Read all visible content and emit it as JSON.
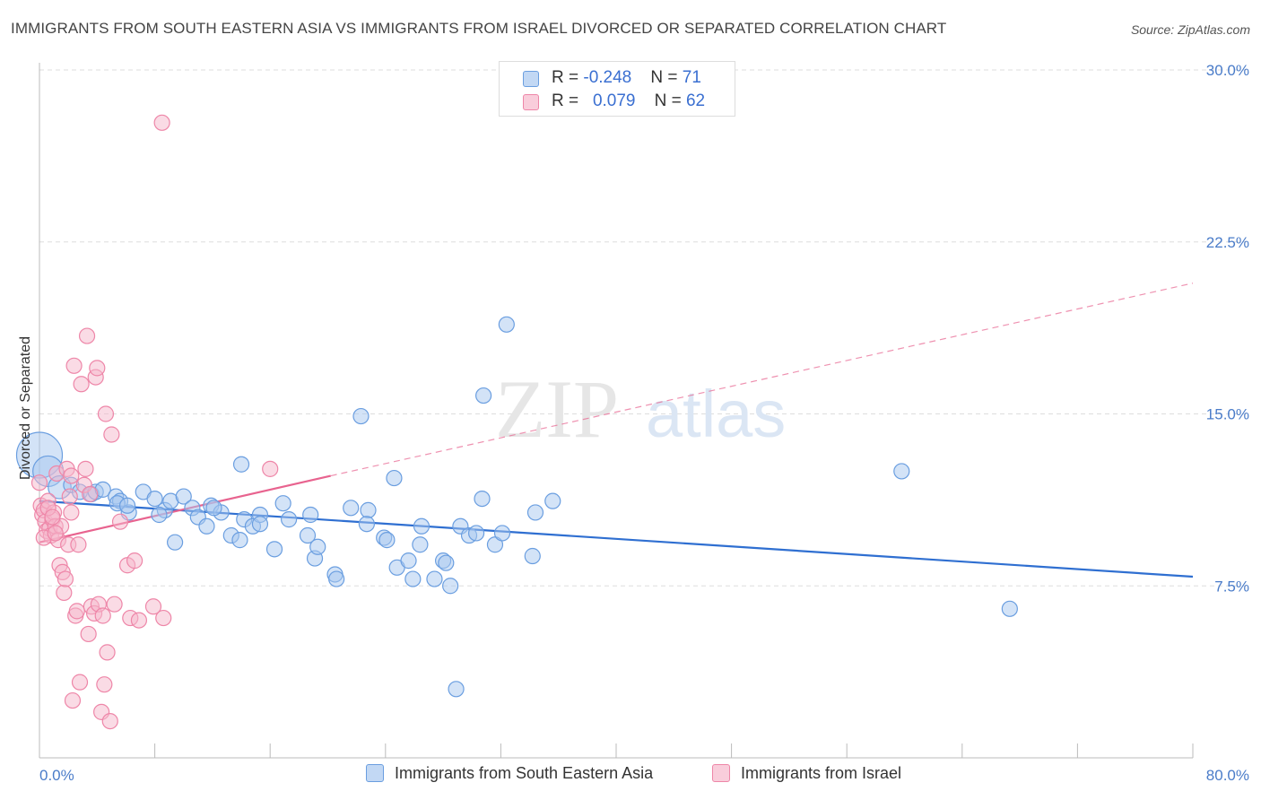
{
  "title": "IMMIGRANTS FROM SOUTH EASTERN ASIA VS IMMIGRANTS FROM ISRAEL DIVORCED OR SEPARATED CORRELATION CHART",
  "source": "Source: ZipAtlas.com",
  "watermark": {
    "zip": "ZIP",
    "atlas": "atlas"
  },
  "legend": {
    "row1": {
      "r_label": "R = ",
      "r_value": "-0.248",
      "n_label": "N = ",
      "n_value": "71"
    },
    "row2": {
      "r_label": "R = ",
      "r_value": "0.079",
      "n_label": "N = ",
      "n_value": "62"
    }
  },
  "colors": {
    "blue_fill": "#a8c8f0",
    "blue_stroke": "#6a9ee0",
    "blue_line": "#2f6fd1",
    "pink_fill": "#f6b8cc",
    "pink_stroke": "#ee86a8",
    "pink_line": "#e8638f",
    "grid": "#dddddd",
    "axis_text": "#4a7cc9"
  },
  "chart_data": {
    "type": "scatter",
    "title": "IMMIGRANTS FROM SOUTH EASTERN ASIA VS IMMIGRANTS FROM ISRAEL DIVORCED OR SEPARATED CORRELATION CHART",
    "xlabel": "",
    "ylabel": "Divorced or Separated",
    "xlim": [
      0,
      80
    ],
    "ylim": [
      0,
      31
    ],
    "x_tick_labels": [
      "0.0%",
      "80.0%"
    ],
    "y_ticks": [
      7.5,
      15.0,
      22.5,
      30.0
    ],
    "y_tick_labels": [
      "7.5%",
      "15.0%",
      "22.5%",
      "30.0%"
    ],
    "grid": true,
    "legend_position": "top-center",
    "series": [
      {
        "name": "Immigrants from South Eastern Asia",
        "color": "blue",
        "points": [
          [
            0.0,
            13.2,
            3
          ],
          [
            0.6,
            12.5,
            2
          ],
          [
            1.4,
            11.8,
            1.5
          ],
          [
            2.2,
            11.9,
            1
          ],
          [
            2.8,
            11.6,
            1
          ],
          [
            3.6,
            11.5,
            1
          ],
          [
            3.9,
            11.6,
            1
          ],
          [
            4.4,
            11.7,
            1
          ],
          [
            5.3,
            11.4,
            1
          ],
          [
            5.6,
            11.2,
            1
          ],
          [
            5.4,
            11.1,
            1
          ],
          [
            6.2,
            10.7,
            1
          ],
          [
            7.2,
            11.6,
            1
          ],
          [
            6.1,
            11.0,
            1
          ],
          [
            8.0,
            11.3,
            1
          ],
          [
            8.7,
            10.8,
            1
          ],
          [
            8.3,
            10.6,
            1
          ],
          [
            9.1,
            11.2,
            1
          ],
          [
            10.0,
            11.4,
            1
          ],
          [
            10.6,
            10.9,
            1
          ],
          [
            9.4,
            9.4,
            1
          ],
          [
            11.0,
            10.5,
            1
          ],
          [
            11.6,
            10.1,
            1
          ],
          [
            11.9,
            11.0,
            1
          ],
          [
            12.6,
            10.7,
            1
          ],
          [
            12.1,
            10.9,
            1
          ],
          [
            13.3,
            9.7,
            1
          ],
          [
            13.9,
            9.5,
            1
          ],
          [
            14.2,
            10.4,
            1
          ],
          [
            14.8,
            10.1,
            1
          ],
          [
            15.3,
            10.6,
            1
          ],
          [
            14.0,
            12.8,
            1
          ],
          [
            15.3,
            10.2,
            1
          ],
          [
            16.3,
            9.1,
            1
          ],
          [
            16.9,
            11.1,
            1
          ],
          [
            17.3,
            10.4,
            1
          ],
          [
            18.8,
            10.6,
            1
          ],
          [
            18.6,
            9.7,
            1
          ],
          [
            19.1,
            8.7,
            1
          ],
          [
            19.3,
            9.2,
            1
          ],
          [
            20.5,
            8.0,
            1
          ],
          [
            20.6,
            7.8,
            1
          ],
          [
            21.6,
            10.9,
            1
          ],
          [
            22.3,
            14.9,
            1
          ],
          [
            22.8,
            10.8,
            1
          ],
          [
            22.7,
            10.2,
            1
          ],
          [
            23.9,
            9.6,
            1
          ],
          [
            24.1,
            9.5,
            1
          ],
          [
            24.6,
            12.2,
            1
          ],
          [
            24.8,
            8.3,
            1
          ],
          [
            25.6,
            8.6,
            1
          ],
          [
            25.9,
            7.8,
            1
          ],
          [
            26.4,
            9.3,
            1
          ],
          [
            26.5,
            10.1,
            1
          ],
          [
            27.4,
            7.8,
            1
          ],
          [
            28.0,
            8.6,
            1
          ],
          [
            28.2,
            8.5,
            1
          ],
          [
            28.5,
            7.5,
            1
          ],
          [
            28.9,
            3.0,
            1
          ],
          [
            29.2,
            10.1,
            1
          ],
          [
            29.8,
            9.7,
            1
          ],
          [
            30.3,
            9.8,
            1
          ],
          [
            30.7,
            11.3,
            1
          ],
          [
            30.8,
            15.8,
            1
          ],
          [
            31.6,
            9.3,
            1
          ],
          [
            32.1,
            9.8,
            1
          ],
          [
            32.4,
            18.9,
            1
          ],
          [
            34.2,
            8.8,
            1
          ],
          [
            34.4,
            10.7,
            1
          ],
          [
            35.6,
            11.2,
            1
          ],
          [
            59.8,
            12.5,
            1
          ],
          [
            67.3,
            6.5,
            1
          ]
        ],
        "trend": {
          "x": [
            0,
            80
          ],
          "y": [
            11.2,
            7.9
          ],
          "style": "solid"
        }
      },
      {
        "name": "Immigrants from Israel",
        "color": "pink",
        "points": [
          [
            0.1,
            11.0,
            1
          ],
          [
            0.2,
            10.6,
            1
          ],
          [
            0.3,
            10.8,
            1
          ],
          [
            0.4,
            10.3,
            1
          ],
          [
            0.5,
            9.9,
            1
          ],
          [
            0.6,
            11.2,
            1
          ],
          [
            0.7,
            10.0,
            1
          ],
          [
            0.8,
            9.7,
            1
          ],
          [
            0.9,
            10.4,
            1
          ],
          [
            1.0,
            10.7,
            1
          ],
          [
            1.1,
            10.1,
            1
          ],
          [
            1.2,
            12.4,
            1
          ],
          [
            1.3,
            9.5,
            1
          ],
          [
            1.4,
            8.4,
            1
          ],
          [
            1.5,
            10.1,
            1
          ],
          [
            1.6,
            8.1,
            1
          ],
          [
            1.7,
            7.2,
            1
          ],
          [
            1.8,
            7.8,
            1
          ],
          [
            1.9,
            12.6,
            1
          ],
          [
            2.0,
            9.3,
            1
          ],
          [
            2.1,
            11.4,
            1
          ],
          [
            2.2,
            10.7,
            1
          ],
          [
            2.3,
            2.5,
            1
          ],
          [
            2.4,
            17.1,
            1
          ],
          [
            2.5,
            6.2,
            1
          ],
          [
            2.6,
            6.4,
            1
          ],
          [
            2.7,
            9.3,
            1
          ],
          [
            2.8,
            3.3,
            1
          ],
          [
            2.9,
            16.3,
            1
          ],
          [
            3.1,
            11.9,
            1
          ],
          [
            3.2,
            12.6,
            1
          ],
          [
            3.3,
            18.4,
            1
          ],
          [
            3.4,
            5.4,
            1
          ],
          [
            3.5,
            11.5,
            1
          ],
          [
            3.6,
            6.6,
            1
          ],
          [
            3.8,
            6.3,
            1
          ],
          [
            3.9,
            16.6,
            1
          ],
          [
            4.0,
            17.0,
            1
          ],
          [
            4.1,
            6.7,
            1
          ],
          [
            4.3,
            2.0,
            1
          ],
          [
            4.4,
            6.2,
            1
          ],
          [
            4.5,
            3.2,
            1
          ],
          [
            4.6,
            15.0,
            1
          ],
          [
            4.7,
            4.6,
            1
          ],
          [
            4.9,
            1.6,
            1
          ],
          [
            5.0,
            14.1,
            1
          ],
          [
            5.2,
            6.7,
            1
          ],
          [
            5.6,
            10.3,
            1
          ],
          [
            6.1,
            8.4,
            1
          ],
          [
            6.3,
            6.1,
            1
          ],
          [
            6.6,
            8.6,
            1
          ],
          [
            6.9,
            6.0,
            1
          ],
          [
            7.9,
            6.6,
            1
          ],
          [
            8.6,
            6.1,
            1
          ],
          [
            8.5,
            27.7,
            1
          ],
          [
            16.0,
            12.6,
            1
          ],
          [
            0.0,
            12.0,
            1
          ],
          [
            0.3,
            9.6,
            1
          ],
          [
            0.6,
            10.9,
            1
          ],
          [
            0.9,
            10.5,
            1
          ],
          [
            1.1,
            9.8,
            1
          ],
          [
            2.2,
            12.3,
            1
          ]
        ],
        "trend": {
          "x": [
            0,
            20.2
          ],
          "y": [
            9.4,
            12.3
          ],
          "style": "solid",
          "dashed_extension": {
            "x": [
              20.2,
              80
            ],
            "y": [
              12.3,
              20.7
            ]
          }
        }
      }
    ]
  },
  "bottom_legend": {
    "item1": "Immigrants from South Eastern Asia",
    "item2": "Immigrants from Israel"
  }
}
